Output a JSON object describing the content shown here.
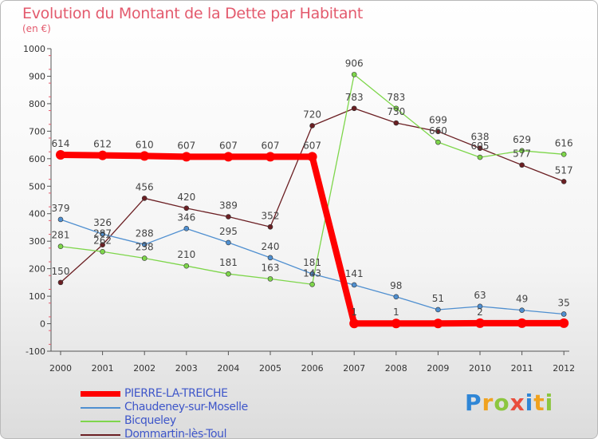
{
  "title": "Evolution du Montant de la Dette par Habitant",
  "subtitle": "(en €)",
  "brand": "Proxiti",
  "chart_data": {
    "type": "line",
    "categories": [
      "2000",
      "2001",
      "2002",
      "2003",
      "2004",
      "2005",
      "2006",
      "2007",
      "2008",
      "2009",
      "2010",
      "2011",
      "2012"
    ],
    "ylim": [
      -100,
      1000
    ],
    "yticks": [
      -100,
      0,
      100,
      200,
      300,
      400,
      500,
      600,
      700,
      800,
      900,
      1000
    ],
    "grid": false,
    "legend_position": "bottom-left",
    "series": [
      {
        "name": "PIERRE-LA-TREICHE",
        "color": "#ff0000",
        "values": [
          614,
          612,
          610,
          607,
          607,
          607,
          607,
          1,
          1,
          1,
          2,
          2,
          2
        ],
        "labels": [
          "614",
          "612",
          "610",
          "607",
          "607",
          "607",
          "607",
          "1",
          "1",
          "",
          "2",
          "",
          ""
        ]
      },
      {
        "name": "Chaudeney-sur-Moselle",
        "color": "#4f8fd0",
        "values": [
          379,
          326,
          288,
          346,
          295,
          240,
          181,
          141,
          98,
          51,
          63,
          49,
          35
        ],
        "labels": [
          "379",
          "326",
          "288",
          "346",
          "295",
          "240",
          "181",
          "141",
          "98",
          "51",
          "63",
          "49",
          "35"
        ]
      },
      {
        "name": "Bicqueley",
        "color": "#7ed64b",
        "values": [
          281,
          262,
          238,
          210,
          181,
          163,
          143,
          906,
          783,
          660,
          605,
          629,
          616
        ],
        "labels": [
          "281",
          "262",
          "238",
          "210",
          "181",
          "163",
          "143",
          "906",
          "783",
          "660",
          "605",
          "629",
          "616"
        ]
      },
      {
        "name": "Dommartin-lès-Toul",
        "color": "#6b1f23",
        "values": [
          150,
          287,
          456,
          420,
          389,
          352,
          720,
          783,
          730,
          699,
          638,
          577,
          517
        ],
        "labels": [
          "150",
          "287",
          "456",
          "420",
          "389",
          "352",
          "720",
          "783",
          "730",
          "699",
          "638",
          "577",
          "517"
        ]
      }
    ]
  }
}
